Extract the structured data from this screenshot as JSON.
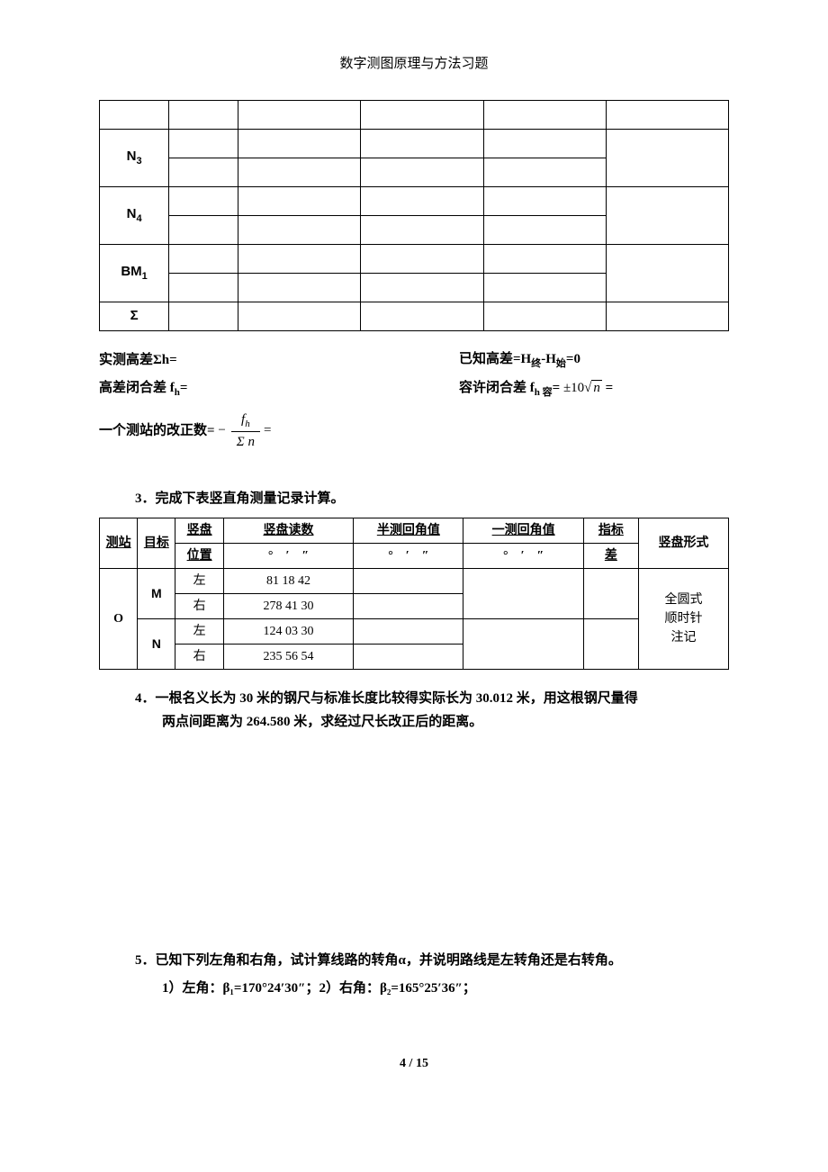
{
  "header": {
    "title": "数字测图原理与方法习题"
  },
  "table1": {
    "rows": [
      {
        "label_html": "&nbsp;"
      },
      {
        "label_html": "N<span class='sub'>3</span>"
      },
      {
        "label_html": "&nbsp;"
      },
      {
        "label_html": "N<span class='sub'>4</span>"
      },
      {
        "label_html": "&nbsp;"
      },
      {
        "label_html": "BM<span class='sub'>1</span>"
      },
      {
        "label_html": "&nbsp;"
      },
      {
        "label_html": "Σ"
      }
    ]
  },
  "formulas": {
    "measured_diff": "实测高差Σh=",
    "known_diff_label": "已知高差=H",
    "known_diff_end_sub": "终",
    "known_diff_minus": "-H",
    "known_diff_start_sub": "始",
    "known_diff_eq": "=0",
    "closure_label": "高差闭合差 f",
    "closure_sub": "h",
    "closure_eq": "=",
    "allowed_label_a": "容许闭合差 f",
    "allowed_sub": "h 容",
    "allowed_eq": "=",
    "allowed_pm": "±10",
    "allowed_sqrt_var": "n",
    "allowed_trailing": " =",
    "station_corr_label": "一个测站的改正数=",
    "frac_num_sign": "−",
    "frac_num_f": "f",
    "frac_num_sub": "h",
    "frac_den": "Σ n",
    "frac_eq": "="
  },
  "section3": {
    "title": "3．完成下表竖直角测量记录计算。",
    "headers": {
      "station": "测站",
      "target": "目标",
      "disk_pos_u": "竖盘",
      "disk_pos_l": "位置",
      "reading_u": "竖盘读数",
      "reading_unit": "°　′　″",
      "half_u": "半测回角值",
      "half_unit": "°　′　″",
      "full_u": "一测回角值",
      "full_unit": "°　′　″",
      "index_u": "指标",
      "index_l": "差",
      "form": "竖盘形式"
    },
    "data": {
      "station": "O",
      "target_m": "M",
      "target_n": "N",
      "pos_left": "左",
      "pos_right": "右",
      "m_left": "81 18 42",
      "m_right": "278 41 30",
      "n_left": "124 03 30",
      "n_right": "235 56 54",
      "form_l1": "全圆式",
      "form_l2": "顺时针",
      "form_l3": "注记"
    }
  },
  "question4": {
    "title": "4．一根名义长为 30 米的钢尺与标准长度比较得实际长为 30.012 米，用这根钢尺量得",
    "body": "两点间距离为 264.580 米，求经过尺长改正后的距离。"
  },
  "question5": {
    "title": "5．已知下列左角和右角，试计算线路的转角α，并说明路线是左转角还是右转角。",
    "sub": "1）左角：β₁=170°24′30″；2）右角：β₂=165°25′36″；"
  },
  "footer": {
    "page": "4",
    "sep": " / ",
    "total": "15"
  }
}
